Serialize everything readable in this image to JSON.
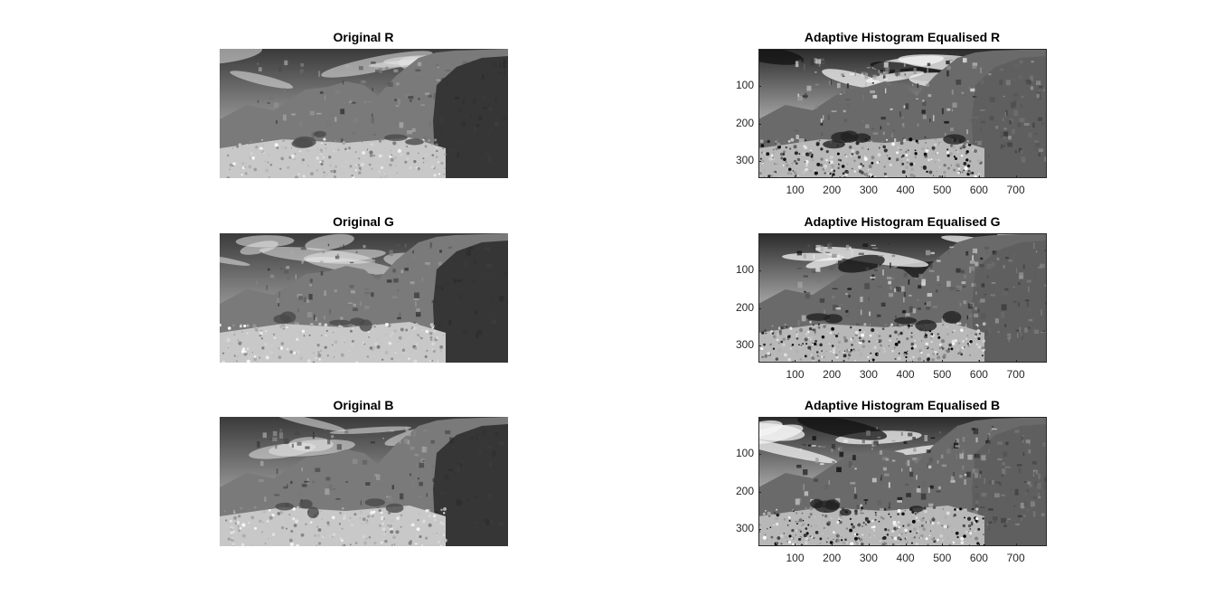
{
  "figure": {
    "panels": [
      {
        "id": "orig-r",
        "title": "Original R",
        "variant": "original",
        "seed": 1
      },
      {
        "id": "ahe-r",
        "title": "Adaptive Histogram Equalised R",
        "variant": "equalised",
        "seed": 11
      },
      {
        "id": "orig-g",
        "title": "Original G",
        "variant": "original",
        "seed": 2
      },
      {
        "id": "ahe-g",
        "title": "Adaptive Histogram Equalised G",
        "variant": "equalised",
        "seed": 12
      },
      {
        "id": "orig-b",
        "title": "Original B",
        "variant": "original",
        "seed": 3
      },
      {
        "id": "ahe-b",
        "title": "Adaptive Histogram Equalised B",
        "variant": "equalised",
        "seed": 13
      }
    ],
    "axes": {
      "x_ticks": [
        "100",
        "200",
        "300",
        "400",
        "500",
        "600",
        "700"
      ],
      "x_tick_values": [
        100,
        200,
        300,
        400,
        500,
        600,
        700
      ],
      "y_ticks": [
        "100",
        "200",
        "300"
      ],
      "y_tick_values": [
        100,
        200,
        300
      ],
      "x_range": [
        0.5,
        784.5
      ],
      "y_range": [
        0.5,
        345.5
      ]
    }
  }
}
